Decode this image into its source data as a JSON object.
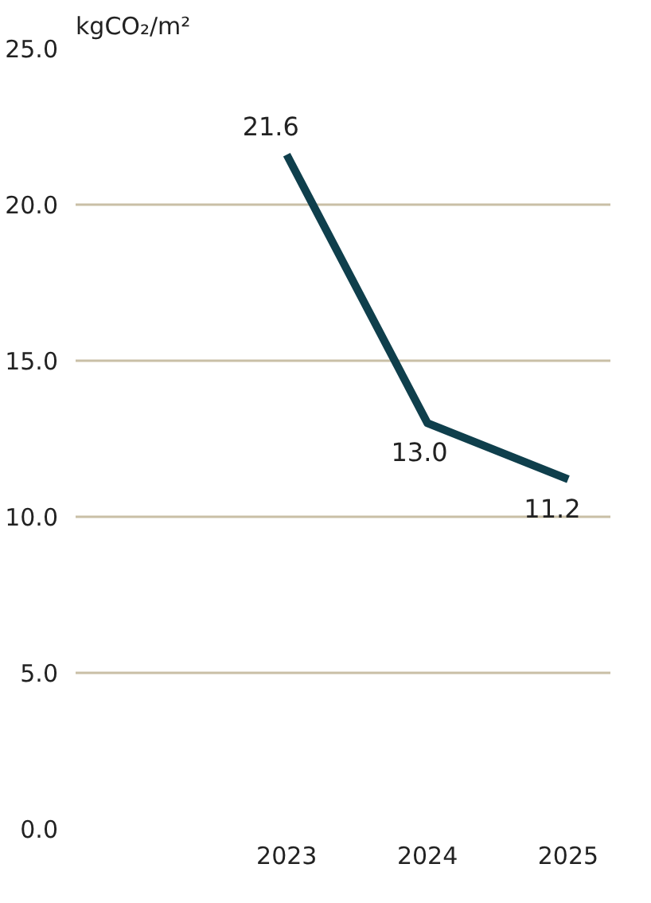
{
  "chart_data": {
    "type": "line",
    "ylabel": "kgCO₂/m²",
    "x": [
      2023,
      2024,
      2025
    ],
    "series": [
      {
        "color": "#0f3f4c",
        "values": [
          21.6,
          13.0,
          11.2
        ],
        "value_labels": [
          "21.6",
          "13.0",
          "11.2"
        ]
      }
    ],
    "xlim": [
      2021.5,
      2025.3
    ],
    "xticks": [
      2023,
      2024,
      2025
    ],
    "ylim": [
      0,
      25
    ],
    "yticks": [
      {
        "value": 0,
        "label": "0.0"
      },
      {
        "value": 5,
        "label": "5.0"
      },
      {
        "value": 10,
        "label": "10.0"
      },
      {
        "value": 15,
        "label": "15.0"
      },
      {
        "value": 20,
        "label": "20.0"
      },
      {
        "value": 25,
        "label": "25.0"
      }
    ],
    "grid": "y",
    "marker": "none",
    "line_style": "solid"
  }
}
